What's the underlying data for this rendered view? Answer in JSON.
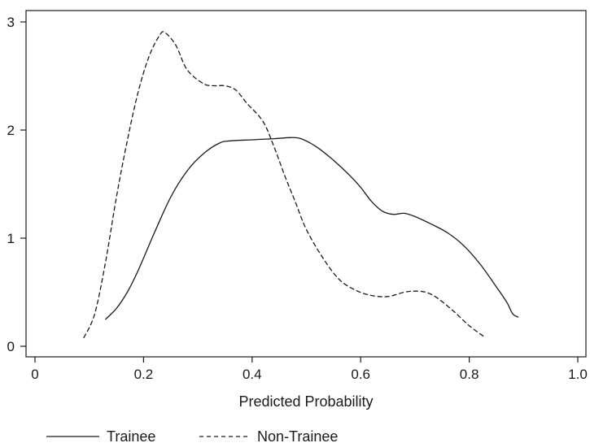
{
  "chart_data": {
    "type": "line",
    "title": "",
    "xlabel": "Predicted Probability",
    "ylabel": "",
    "xlim": [
      0,
      1.0
    ],
    "ylim": [
      0,
      3
    ],
    "x_ticks": [
      0,
      0.2,
      0.4,
      0.6,
      0.8,
      1.0
    ],
    "x_tick_labels": [
      "0",
      "0.2",
      "0.4",
      "0.6",
      "0.8",
      "1.0"
    ],
    "y_ticks": [
      0,
      1,
      2,
      3
    ],
    "y_tick_labels": [
      "0",
      "1",
      "2",
      "3"
    ],
    "grid": false,
    "legend_position": "bottom",
    "series": [
      {
        "name": "Trainee",
        "style": "solid",
        "color": "#1a1a1a",
        "points": [
          [
            0.13,
            0.25
          ],
          [
            0.15,
            0.35
          ],
          [
            0.17,
            0.5
          ],
          [
            0.19,
            0.7
          ],
          [
            0.22,
            1.05
          ],
          [
            0.25,
            1.38
          ],
          [
            0.28,
            1.62
          ],
          [
            0.31,
            1.78
          ],
          [
            0.34,
            1.88
          ],
          [
            0.36,
            1.9
          ],
          [
            0.4,
            1.91
          ],
          [
            0.44,
            1.92
          ],
          [
            0.47,
            1.93
          ],
          [
            0.49,
            1.92
          ],
          [
            0.52,
            1.84
          ],
          [
            0.55,
            1.72
          ],
          [
            0.58,
            1.58
          ],
          [
            0.6,
            1.47
          ],
          [
            0.62,
            1.34
          ],
          [
            0.64,
            1.25
          ],
          [
            0.66,
            1.22
          ],
          [
            0.68,
            1.23
          ],
          [
            0.7,
            1.2
          ],
          [
            0.73,
            1.13
          ],
          [
            0.76,
            1.05
          ],
          [
            0.79,
            0.93
          ],
          [
            0.82,
            0.76
          ],
          [
            0.85,
            0.55
          ],
          [
            0.87,
            0.4
          ],
          [
            0.88,
            0.3
          ],
          [
            0.89,
            0.27
          ]
        ]
      },
      {
        "name": "Non-Trainee",
        "style": "dashed",
        "color": "#1a1a1a",
        "points": [
          [
            0.09,
            0.08
          ],
          [
            0.11,
            0.3
          ],
          [
            0.13,
            0.78
          ],
          [
            0.15,
            1.38
          ],
          [
            0.17,
            1.9
          ],
          [
            0.19,
            2.35
          ],
          [
            0.21,
            2.68
          ],
          [
            0.23,
            2.88
          ],
          [
            0.24,
            2.9
          ],
          [
            0.26,
            2.78
          ],
          [
            0.28,
            2.56
          ],
          [
            0.31,
            2.43
          ],
          [
            0.33,
            2.41
          ],
          [
            0.35,
            2.41
          ],
          [
            0.37,
            2.37
          ],
          [
            0.39,
            2.25
          ],
          [
            0.42,
            2.08
          ],
          [
            0.44,
            1.85
          ],
          [
            0.46,
            1.58
          ],
          [
            0.48,
            1.33
          ],
          [
            0.5,
            1.08
          ],
          [
            0.53,
            0.82
          ],
          [
            0.56,
            0.62
          ],
          [
            0.59,
            0.52
          ],
          [
            0.62,
            0.47
          ],
          [
            0.65,
            0.46
          ],
          [
            0.68,
            0.5
          ],
          [
            0.7,
            0.51
          ],
          [
            0.72,
            0.5
          ],
          [
            0.74,
            0.45
          ],
          [
            0.77,
            0.33
          ],
          [
            0.8,
            0.19
          ],
          [
            0.83,
            0.08
          ]
        ]
      }
    ]
  }
}
